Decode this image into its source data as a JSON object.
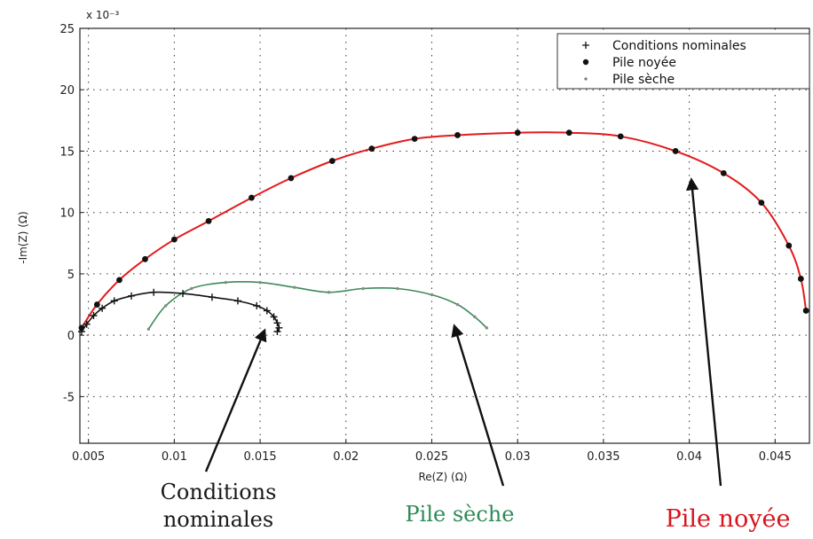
{
  "chart_data": {
    "type": "scatter",
    "xlabel": "Re(Z) (Ω)",
    "ylabel": "-Im(Z) (Ω)",
    "y_multiplier": "x 10⁻³",
    "xlim": [
      0.0045,
      0.047
    ],
    "ylim": [
      -8.8,
      25
    ],
    "xticks": [
      0.005,
      0.01,
      0.015,
      0.02,
      0.025,
      0.03,
      0.035,
      0.04,
      0.045
    ],
    "xtick_labels": [
      "0.005",
      "0.01",
      "0.015",
      "0.02",
      "0.025",
      "0.03",
      "0.035",
      "0.04",
      "0.045"
    ],
    "yticks": [
      -5,
      0,
      5,
      10,
      15,
      20,
      25
    ],
    "ytick_labels": [
      "-5",
      "0",
      "5",
      "10",
      "15",
      "20",
      "25"
    ],
    "grid": true,
    "legend_position": "top-right",
    "series": [
      {
        "name": "Conditions nominales",
        "marker": "plus",
        "color": "#111111",
        "x": [
          0.0046,
          0.0049,
          0.0053,
          0.0058,
          0.0065,
          0.0075,
          0.0088,
          0.0105,
          0.0122,
          0.0137,
          0.0148,
          0.0154,
          0.0158,
          0.016,
          0.0161,
          0.016
        ],
        "y": [
          0.3,
          0.9,
          1.6,
          2.2,
          2.8,
          3.2,
          3.5,
          3.4,
          3.1,
          2.8,
          2.4,
          2.0,
          1.5,
          1.0,
          0.6,
          0.3
        ]
      },
      {
        "name": "Pile noyée",
        "marker": "dot",
        "color": "#111111",
        "line_color": "#e31a1c",
        "x": [
          0.0046,
          0.0055,
          0.0068,
          0.0083,
          0.01,
          0.012,
          0.0145,
          0.0168,
          0.0192,
          0.0215,
          0.024,
          0.0265,
          0.03,
          0.033,
          0.036,
          0.0392,
          0.042,
          0.0442,
          0.0458,
          0.0465,
          0.0468
        ],
        "y": [
          0.6,
          2.5,
          4.5,
          6.2,
          7.8,
          9.3,
          11.2,
          12.8,
          14.2,
          15.2,
          16.0,
          16.3,
          16.5,
          16.5,
          16.2,
          15.0,
          13.2,
          10.8,
          7.3,
          4.6,
          2.0
        ]
      },
      {
        "name": "Pile sèche",
        "marker": "small-dot",
        "color": "#888888",
        "line_color": "#3c8a5a",
        "x": [
          0.0085,
          0.0095,
          0.011,
          0.013,
          0.015,
          0.017,
          0.019,
          0.021,
          0.023,
          0.025,
          0.0265,
          0.0275,
          0.0282
        ],
        "y": [
          0.5,
          2.4,
          3.8,
          4.3,
          4.3,
          3.9,
          3.5,
          3.8,
          3.8,
          3.3,
          2.5,
          1.5,
          0.6
        ]
      }
    ],
    "annotations": [
      {
        "line1": "Conditions",
        "line2": "nominales",
        "color": "#1a1a1a"
      },
      {
        "line1": "Pile sèche",
        "line2": "",
        "color": "#2e8b57"
      },
      {
        "line1": "Pile noyée",
        "line2": "",
        "color": "#d7141e"
      }
    ]
  }
}
